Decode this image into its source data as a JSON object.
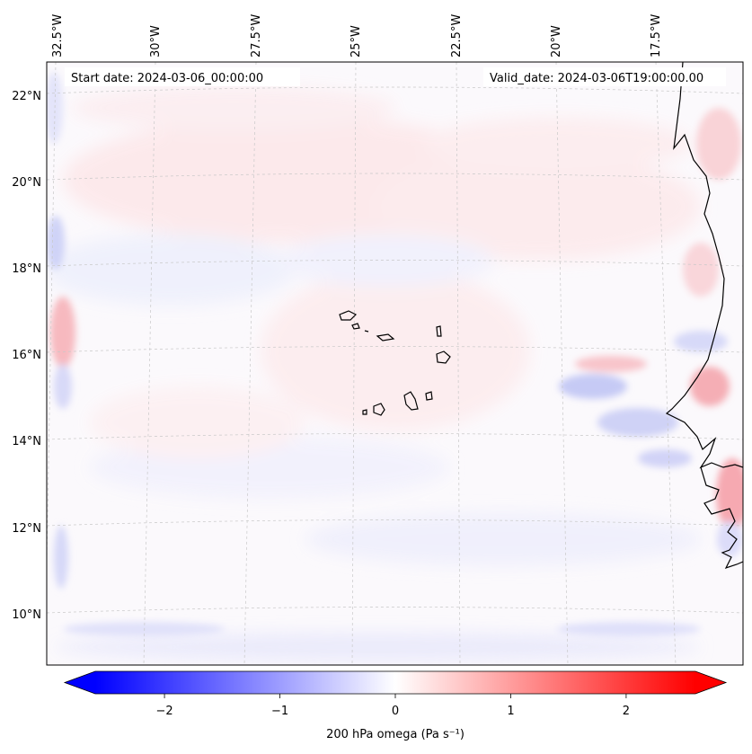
{
  "map": {
    "start_date": "Start date: 2024-03-06_00:00:00",
    "valid_date": "Valid_date: 2024-03-06T19:00:00.00",
    "lon_labels": [
      "32.5°W",
      "30°W",
      "27.5°W",
      "25°W",
      "22.5°W",
      "20°W",
      "17.5°W"
    ],
    "lat_labels": [
      "22°N",
      "20°N",
      "18°N",
      "16°N",
      "14°N",
      "12°N",
      "10°N"
    ]
  },
  "colorbar": {
    "label": "200 hPa omega (Pa s⁻¹)",
    "ticks": [
      "−2",
      "−1",
      "0",
      "1",
      "2"
    ],
    "tick_values": [
      -2,
      -1,
      0,
      1,
      2
    ],
    "range": [
      -2.6,
      2.6
    ],
    "min_color": "#0000ff",
    "mid_color": "#ffffff",
    "max_color": "#ff0000"
  }
}
